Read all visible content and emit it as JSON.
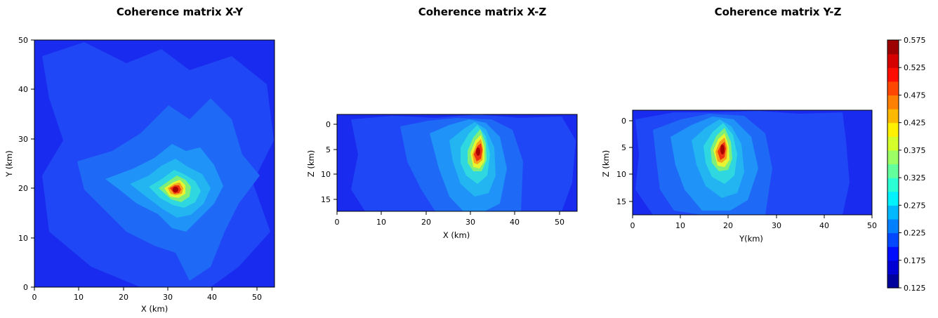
{
  "chart_data": [
    {
      "type": "heatmap",
      "title": "Coherence matrix X-Y",
      "xlabel": "X (km)",
      "ylabel": "Y (km)",
      "xlim": [
        0,
        54
      ],
      "ylim": [
        0,
        50
      ],
      "xticks": [
        "0",
        "10",
        "20",
        "30",
        "40",
        "50"
      ],
      "yticks": [
        "0",
        "10",
        "20",
        "30",
        "40",
        "50"
      ],
      "peak": {
        "x": 31.5,
        "y": 19.5,
        "value": 0.575
      }
    },
    {
      "type": "heatmap",
      "title": "Coherence matrix X-Z",
      "xlabel": "X (km)",
      "ylabel": "Z (km)",
      "xlim": [
        0,
        54
      ],
      "ylim": [
        17.5,
        -2
      ],
      "y_inverted": true,
      "xticks": [
        "0",
        "10",
        "20",
        "30",
        "40",
        "50"
      ],
      "yticks": [
        "0",
        "5",
        "10",
        "15"
      ],
      "peak": {
        "x": 31.5,
        "z": 5.5,
        "value": 0.575
      }
    },
    {
      "type": "heatmap",
      "title": "Coherence matrix Y-Z",
      "xlabel": "Y(km)",
      "ylabel": "Z (km)",
      "xlim": [
        0,
        50
      ],
      "ylim": [
        17.5,
        -2
      ],
      "y_inverted": true,
      "xticks": [
        "0",
        "10",
        "20",
        "30",
        "40",
        "50"
      ],
      "yticks": [
        "0",
        "5",
        "10",
        "15"
      ],
      "peak": {
        "y": 19.5,
        "z": 5.5,
        "value": 0.575
      }
    }
  ],
  "colorbar": {
    "colormap": "jet",
    "range": [
      0.125,
      0.575
    ],
    "levels": 18,
    "ticks": [
      "0.575",
      "0.525",
      "0.475",
      "0.425",
      "0.375",
      "0.325",
      "0.275",
      "0.225",
      "0.175",
      "0.125"
    ]
  }
}
